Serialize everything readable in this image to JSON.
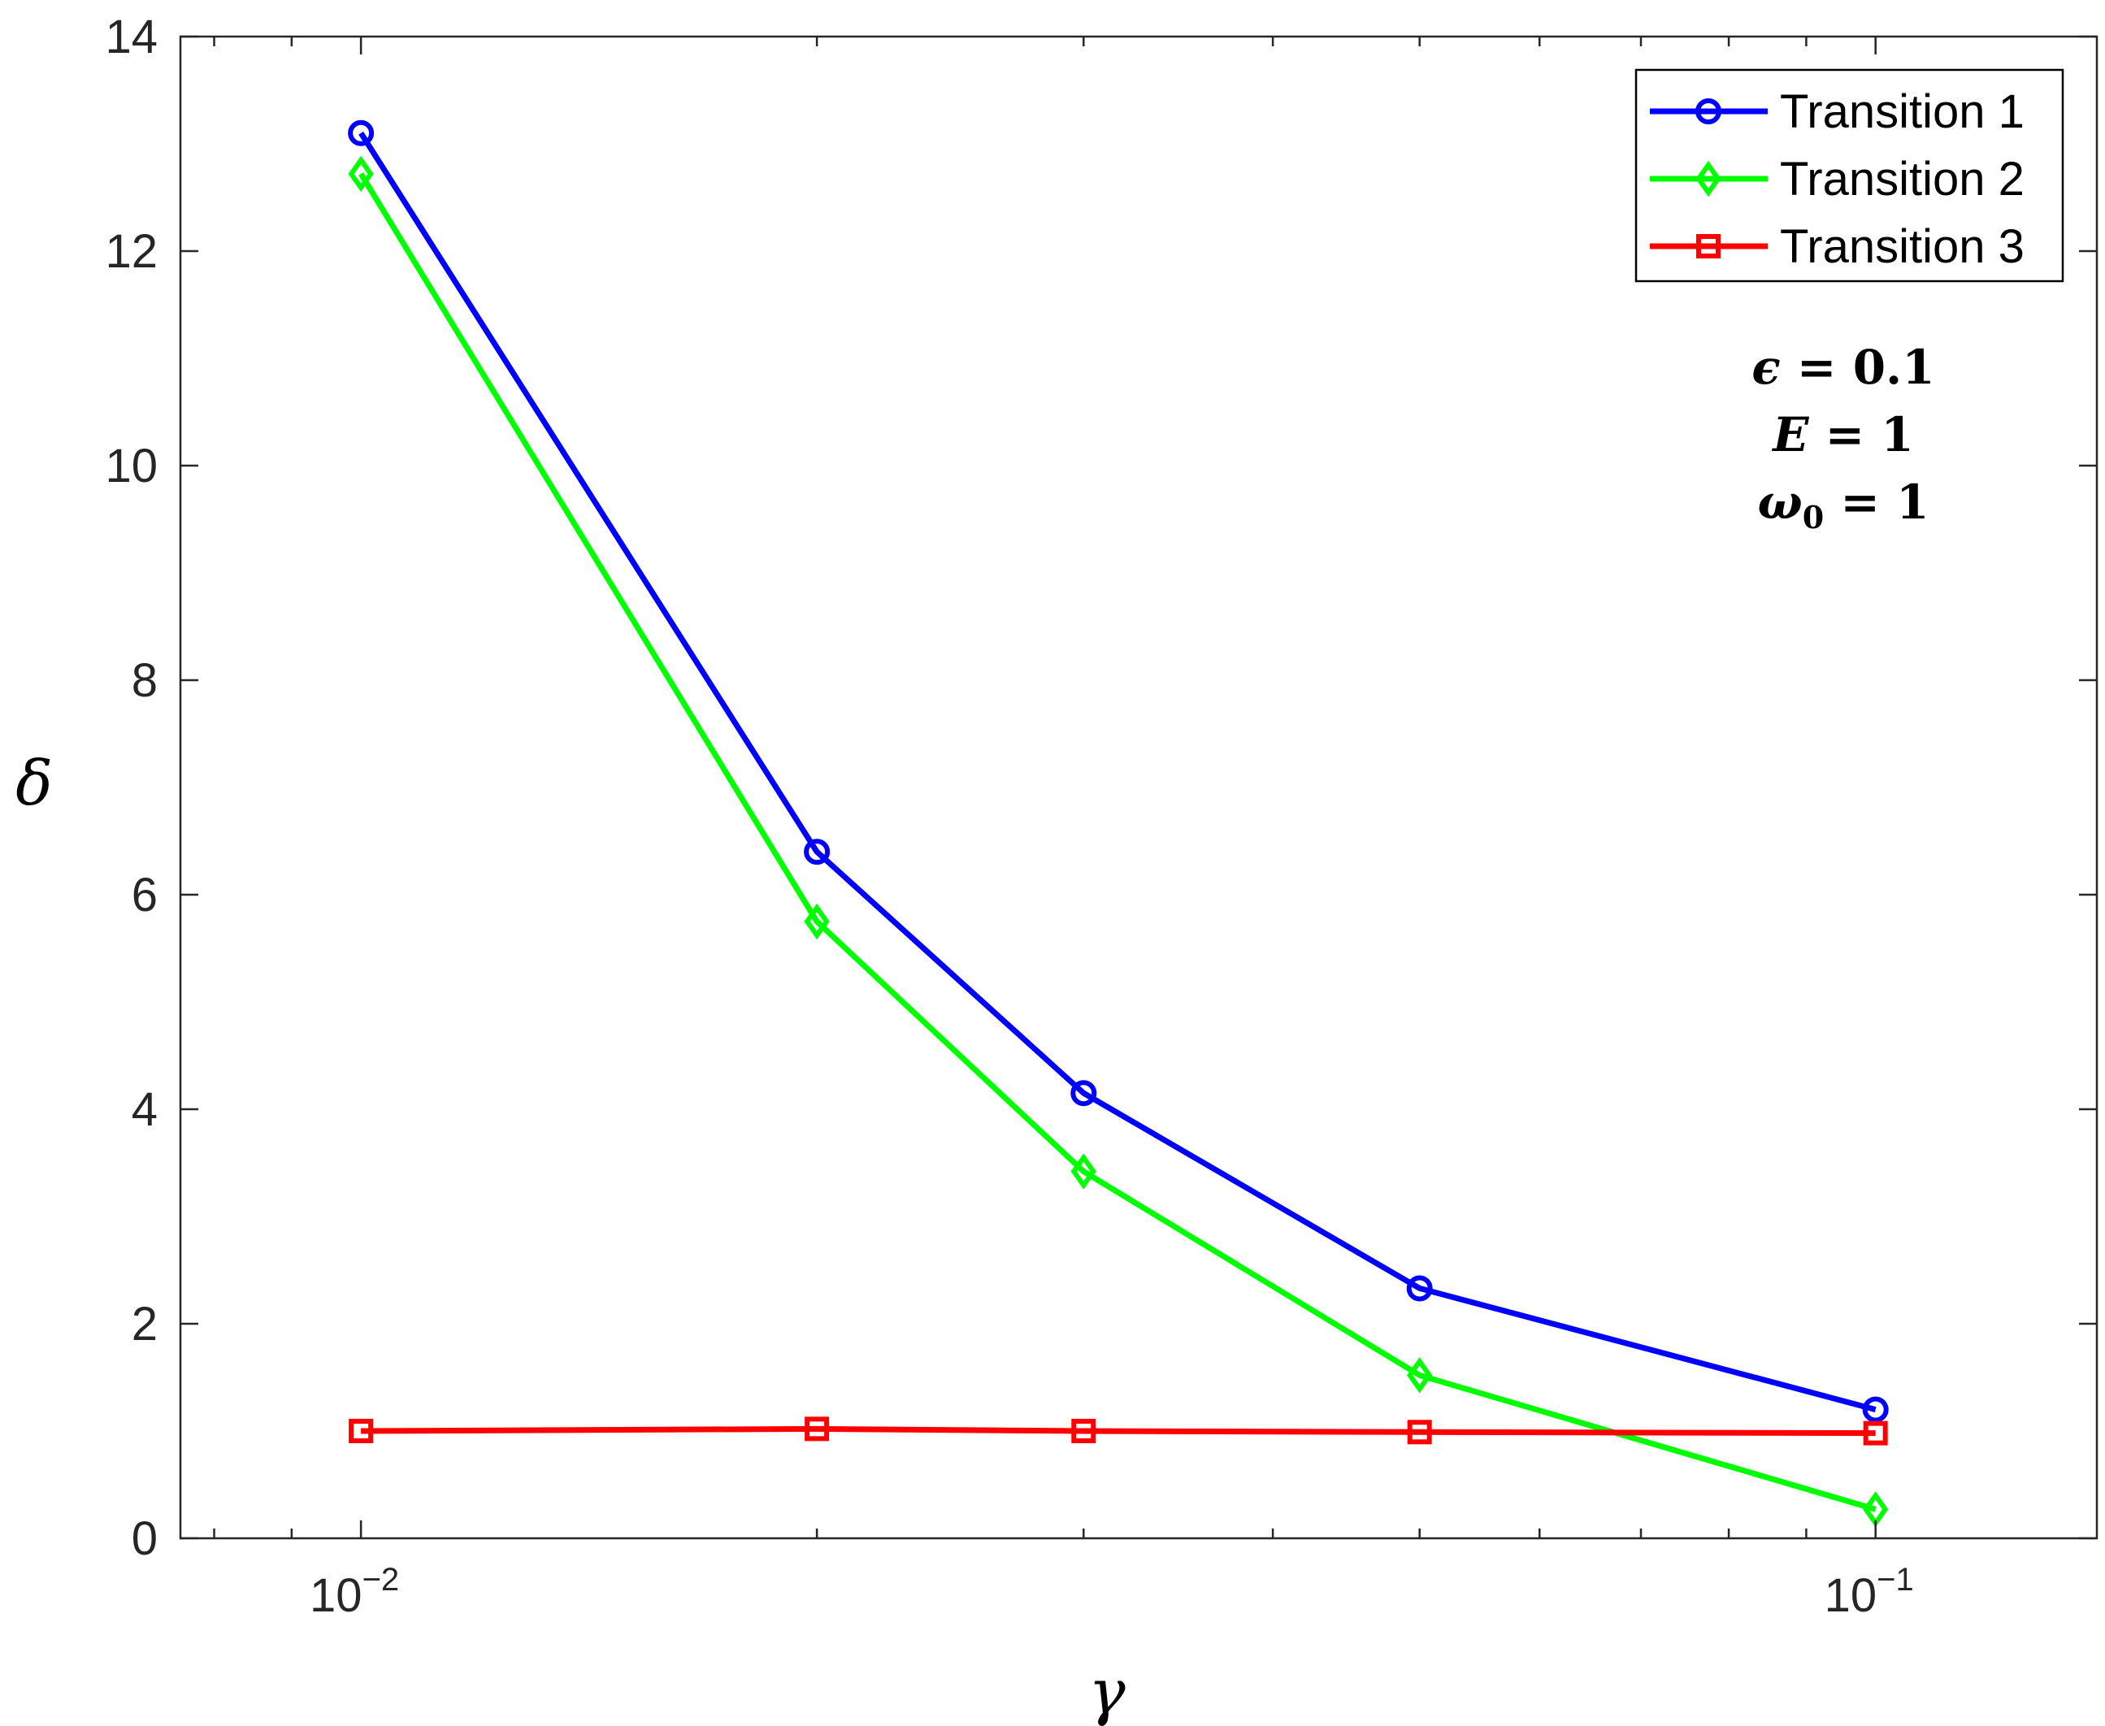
{
  "chart_data": {
    "type": "line",
    "title": "",
    "xlabel": "γ",
    "ylabel": "δ",
    "xscale": "log",
    "xlim": [
      0.0076,
      0.14
    ],
    "ylim": [
      0,
      14
    ],
    "x_tick_labels": [
      {
        "value": 0.01,
        "base": "10",
        "exp": "−2"
      },
      {
        "value": 0.1,
        "base": "10",
        "exp": "−1"
      }
    ],
    "y_ticks": [
      0,
      2,
      4,
      6,
      8,
      10,
      12,
      14
    ],
    "x": [
      0.01,
      0.02,
      0.03,
      0.05,
      0.1
    ],
    "series": [
      {
        "name": "Transition 1",
        "color": "#0000ff",
        "marker": "circle",
        "values": [
          13.1,
          6.4,
          4.15,
          2.33,
          1.2
        ]
      },
      {
        "name": "Transition 2",
        "color": "#00ff00",
        "marker": "diamond",
        "values": [
          12.72,
          5.75,
          3.42,
          1.52,
          0.27
        ]
      },
      {
        "name": "Transition 3",
        "color": "#ff0000",
        "marker": "square",
        "values": [
          1.0,
          1.02,
          1.0,
          0.99,
          0.98
        ]
      }
    ],
    "legend": {
      "placement": "top-right"
    },
    "grid": false,
    "annotations": [
      {
        "id": "epsilon",
        "symbol": "ϵ",
        "equals": " = ",
        "value": "0.1"
      },
      {
        "id": "E",
        "symbol": "E",
        "equals": " = ",
        "value": "1"
      },
      {
        "id": "omega",
        "symbol": "ω",
        "subscript": "0",
        "equals": " = ",
        "value": "1"
      }
    ]
  }
}
